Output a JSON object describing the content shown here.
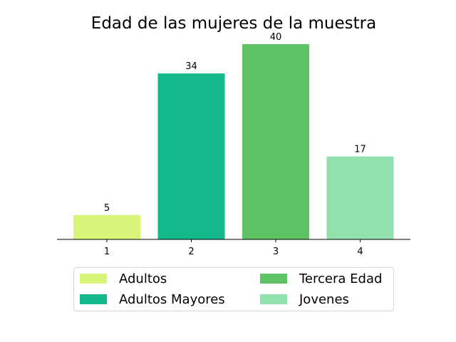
{
  "chart_data": {
    "type": "bar",
    "title": "Edad de las mujeres de la muestra",
    "categories": [
      "1",
      "2",
      "3",
      "4"
    ],
    "values": [
      5,
      34,
      40,
      17
    ],
    "colors": [
      "#d8f57a",
      "#14b88a",
      "#5cc263",
      "#92e0ab"
    ],
    "xlabel": "",
    "ylabel": "",
    "ylim": [
      0,
      42
    ],
    "grid": false,
    "legend": {
      "placement": "bottom-center",
      "entries": [
        {
          "label": "Adultos",
          "color": "#d8f57a"
        },
        {
          "label": "Adultos Mayores",
          "color": "#14b88a"
        },
        {
          "label": "Tercera Edad",
          "color": "#5cc263"
        },
        {
          "label": "Jovenes",
          "color": "#92e0ab"
        }
      ]
    }
  }
}
